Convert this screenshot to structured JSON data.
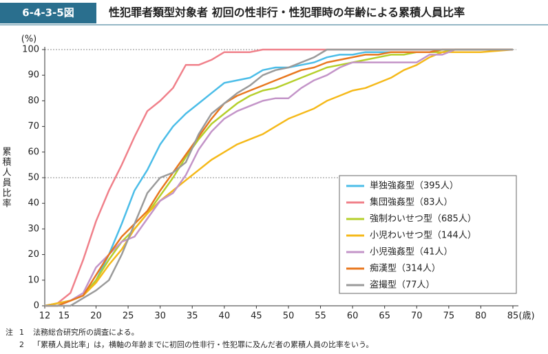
{
  "header": {
    "figure_id": "6-4-3-5図",
    "title": "性犯罪者類型対象者 初回の性非行・性犯罪時の年齢による累積人員比率"
  },
  "chart_data": {
    "type": "line",
    "ylabel": "累積人員比率",
    "y_unit": "(%)",
    "x_unit": "(歳)",
    "x": [
      12,
      14,
      16,
      18,
      20,
      22,
      24,
      26,
      28,
      30,
      32,
      34,
      36,
      38,
      40,
      42,
      44,
      46,
      48,
      50,
      52,
      54,
      56,
      58,
      60,
      62,
      64,
      66,
      68,
      70,
      72,
      74,
      76,
      80,
      85
    ],
    "xlim": [
      12,
      85
    ],
    "xticks": [
      12,
      15,
      20,
      25,
      30,
      35,
      40,
      45,
      50,
      55,
      60,
      65,
      70,
      75,
      80,
      85
    ],
    "ylim": [
      0,
      100
    ],
    "yticks": [
      0,
      10,
      20,
      30,
      40,
      50,
      60,
      70,
      80,
      90,
      100
    ],
    "reference_lines": [
      50,
      100
    ],
    "legend": "lower right",
    "series": [
      {
        "name": "単独強姦型（395人）",
        "color": "#4bbde8",
        "values": [
          0,
          1,
          2,
          4,
          10,
          20,
          32,
          45,
          53,
          63,
          70,
          75,
          79,
          83,
          87,
          88,
          89,
          92,
          93,
          93,
          94,
          95,
          97,
          98,
          98,
          99,
          99,
          99,
          99,
          99,
          99,
          99,
          100,
          100,
          100
        ]
      },
      {
        "name": "集団強姦型（83人）",
        "color": "#f0808a",
        "values": [
          0,
          1,
          5,
          18,
          33,
          45,
          55,
          66,
          76,
          80,
          85,
          94,
          94,
          96,
          99,
          99,
          99,
          100,
          100,
          100,
          100,
          100,
          100,
          100,
          100,
          100,
          100,
          100,
          100,
          100,
          100,
          100,
          100,
          100,
          100
        ]
      },
      {
        "name": "強制わいせつ型（685人）",
        "color": "#b5cf2a",
        "values": [
          0,
          1,
          2,
          4,
          10,
          18,
          25,
          30,
          36,
          43,
          50,
          58,
          65,
          71,
          75,
          79,
          82,
          84,
          85,
          87,
          89,
          91,
          93,
          94,
          95,
          96,
          97,
          98,
          98,
          99,
          99,
          99,
          100,
          100,
          100
        ]
      },
      {
        "name": "小児わいせつ型（144人）",
        "color": "#f5b919",
        "values": [
          0,
          1,
          2,
          4,
          9,
          16,
          22,
          30,
          36,
          41,
          45,
          49,
          53,
          57,
          60,
          63,
          65,
          67,
          70,
          73,
          75,
          77,
          80,
          82,
          84,
          85,
          87,
          89,
          92,
          94,
          97,
          99,
          99,
          99,
          100
        ]
      },
      {
        "name": "小児強姦型（41人）",
        "color": "#c394c8",
        "values": [
          0,
          0,
          2,
          5,
          15,
          20,
          25,
          27,
          34,
          41,
          44,
          51,
          61,
          68,
          73,
          76,
          78,
          80,
          81,
          81,
          85,
          88,
          90,
          93,
          95,
          95,
          95,
          95,
          95,
          95,
          98,
          98,
          100,
          100,
          100
        ]
      },
      {
        "name": "痴漢型（314人）",
        "color": "#e8771e",
        "values": [
          0,
          0,
          2,
          4,
          12,
          20,
          27,
          32,
          37,
          45,
          52,
          59,
          66,
          73,
          79,
          82,
          84,
          86,
          88,
          90,
          92,
          93,
          95,
          96,
          97,
          98,
          98,
          99,
          99,
          99,
          99,
          100,
          100,
          100,
          100
        ]
      },
      {
        "name": "盗撮型（77人）",
        "color": "#9a9a9a",
        "values": [
          0,
          0,
          0,
          3,
          6,
          10,
          20,
          32,
          44,
          50,
          52,
          56,
          67,
          75,
          79,
          83,
          86,
          90,
          92,
          93,
          95,
          97,
          100,
          100,
          100,
          100,
          100,
          100,
          100,
          100,
          100,
          100,
          100,
          100,
          100
        ]
      }
    ]
  },
  "notes": [
    {
      "label": "注",
      "number": "1",
      "text": "法務総合研究所の調査による。"
    },
    {
      "number": "2",
      "text": "「累積人員比率」は，横軸の年齢までに初回の性非行・性犯罪に及んだ者の累積人員の比率をいう。"
    }
  ]
}
